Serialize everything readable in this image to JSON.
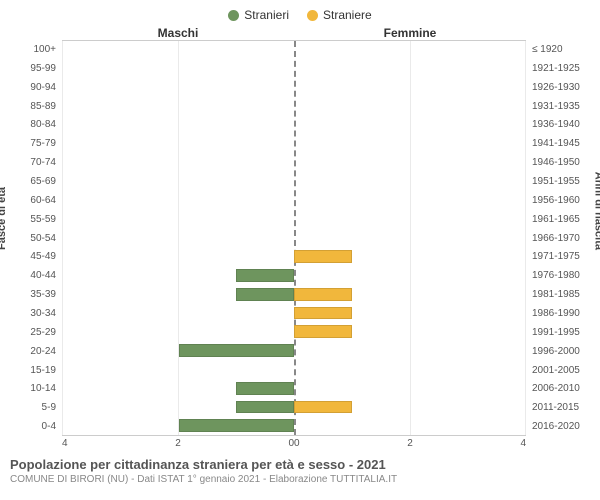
{
  "chart": {
    "type": "population-pyramid",
    "legend": [
      {
        "label": "Stranieri",
        "color": "#6e955e"
      },
      {
        "label": "Straniere",
        "color": "#f1b73c"
      }
    ],
    "headers": {
      "left": "Maschi",
      "right": "Femmine"
    },
    "y_left_title": "Fasce di età",
    "y_right_title": "Anni di nascita",
    "y_left_labels": [
      "100+",
      "95-99",
      "90-94",
      "85-89",
      "80-84",
      "75-79",
      "70-74",
      "65-69",
      "60-64",
      "55-59",
      "50-54",
      "45-49",
      "40-44",
      "35-39",
      "30-34",
      "25-29",
      "20-24",
      "15-19",
      "10-14",
      "5-9",
      "0-4"
    ],
    "y_right_labels": [
      "≤ 1920",
      "1921-1925",
      "1926-1930",
      "1931-1935",
      "1936-1940",
      "1941-1945",
      "1946-1950",
      "1951-1955",
      "1956-1960",
      "1961-1965",
      "1966-1970",
      "1971-1975",
      "1976-1980",
      "1981-1985",
      "1986-1990",
      "1991-1995",
      "1996-2000",
      "2001-2005",
      "2006-2010",
      "2011-2015",
      "2016-2020"
    ],
    "x_max": 4,
    "x_ticks": [
      0,
      2,
      4
    ],
    "colors": {
      "male": "#6e955e",
      "female": "#f1b73c",
      "grid": "#eaeaea",
      "center": "#888888",
      "background": "#ffffff"
    },
    "bar_height_ratio": 0.68,
    "male_values": [
      0,
      0,
      0,
      0,
      0,
      0,
      0,
      0,
      0,
      0,
      0,
      0,
      1,
      1,
      0,
      0,
      2,
      0,
      1,
      1,
      2
    ],
    "female_values": [
      0,
      0,
      0,
      0,
      0,
      0,
      0,
      0,
      0,
      0,
      0,
      1,
      0,
      1,
      1,
      1,
      0,
      0,
      0,
      1,
      0
    ]
  },
  "footer": {
    "title": "Popolazione per cittadinanza straniera per età e sesso - 2021",
    "subtitle": "COMUNE DI BIRORI (NU) - Dati ISTAT 1° gennaio 2021 - Elaborazione TUTTITALIA.IT"
  }
}
